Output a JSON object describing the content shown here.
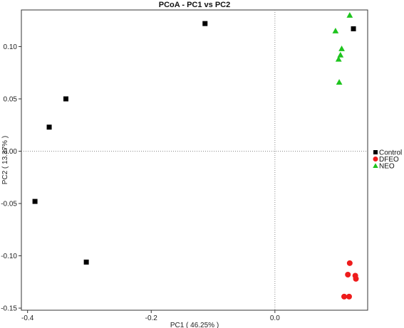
{
  "chart_data": {
    "type": "scatter",
    "title": "PCoA - PC1 vs PC2",
    "xlabel": "PC1 ( 46.25% )",
    "ylabel": "PC2 ( 13.37% )",
    "xlim": [
      -0.41,
      0.15
    ],
    "ylim": [
      -0.152,
      0.135
    ],
    "xticks": [
      -0.4,
      -0.2,
      0.0
    ],
    "xtick_labels": [
      "-0.4",
      "-0.2",
      "0.0"
    ],
    "yticks": [
      -0.15,
      -0.1,
      -0.05,
      0.0,
      0.05,
      0.1
    ],
    "ytick_labels": [
      "-0.15",
      "-0.10",
      "-0.05",
      "0.00",
      "0.05",
      "0.10"
    ],
    "reference_lines": {
      "x": 0.0,
      "y": 0.0
    },
    "legend_position": "right",
    "series": [
      {
        "name": "Control",
        "marker": "square",
        "color": "#000000",
        "points": [
          {
            "x": -0.113,
            "y": 0.122
          },
          {
            "x": -0.338,
            "y": 0.05
          },
          {
            "x": -0.365,
            "y": 0.023
          },
          {
            "x": -0.388,
            "y": -0.048
          },
          {
            "x": -0.305,
            "y": -0.106
          },
          {
            "x": 0.127,
            "y": 0.117
          }
        ]
      },
      {
        "name": "DFEO",
        "marker": "circle",
        "color": "#ee1c1c",
        "points": [
          {
            "x": 0.121,
            "y": -0.107
          },
          {
            "x": 0.118,
            "y": -0.118
          },
          {
            "x": 0.13,
            "y": -0.119
          },
          {
            "x": 0.131,
            "y": -0.122
          },
          {
            "x": 0.112,
            "y": -0.139
          },
          {
            "x": 0.12,
            "y": -0.139
          }
        ]
      },
      {
        "name": "NEO",
        "marker": "triangle",
        "color": "#1ec41e",
        "points": [
          {
            "x": 0.121,
            "y": 0.13
          },
          {
            "x": 0.098,
            "y": 0.115
          },
          {
            "x": 0.108,
            "y": 0.098
          },
          {
            "x": 0.106,
            "y": 0.092
          },
          {
            "x": 0.103,
            "y": 0.088
          },
          {
            "x": 0.104,
            "y": 0.066
          }
        ]
      }
    ]
  }
}
